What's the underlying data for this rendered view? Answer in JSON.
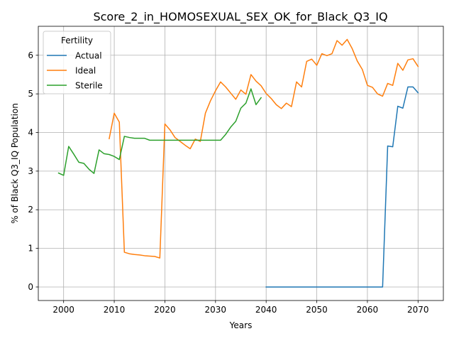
{
  "chart_data": {
    "type": "line",
    "title": "Score_2_in_HOMOSEXUAL_SEX_OK_for_Black_Q3_IQ",
    "xlabel": "Years",
    "ylabel": "% of Black Q3_IQ Population",
    "xlim": [
      1995,
      2075
    ],
    "ylim": [
      -0.35,
      6.75
    ],
    "x_ticks": [
      2000,
      2010,
      2020,
      2030,
      2040,
      2050,
      2060,
      2070
    ],
    "y_ticks": [
      0,
      1,
      2,
      3,
      4,
      5,
      6
    ],
    "grid": true,
    "legend": {
      "title": "Fertility",
      "placement": "top-left"
    },
    "series": [
      {
        "name": "Actual",
        "color": "#1f77b4",
        "points": [
          [
            2040,
            0
          ],
          [
            2041,
            0
          ],
          [
            2042,
            0
          ],
          [
            2043,
            0
          ],
          [
            2044,
            0
          ],
          [
            2045,
            0
          ],
          [
            2046,
            0
          ],
          [
            2047,
            0
          ],
          [
            2048,
            0
          ],
          [
            2049,
            0
          ],
          [
            2050,
            0
          ],
          [
            2051,
            0
          ],
          [
            2052,
            0
          ],
          [
            2053,
            0
          ],
          [
            2054,
            0
          ],
          [
            2055,
            0
          ],
          [
            2056,
            0
          ],
          [
            2057,
            0
          ],
          [
            2058,
            0
          ],
          [
            2059,
            0
          ],
          [
            2060,
            0
          ],
          [
            2061,
            0
          ],
          [
            2062,
            0
          ],
          [
            2063,
            0
          ],
          [
            2064,
            3.65
          ],
          [
            2065,
            3.63
          ],
          [
            2066,
            4.68
          ],
          [
            2067,
            4.63
          ],
          [
            2068,
            5.18
          ],
          [
            2069,
            5.18
          ],
          [
            2070,
            5.03
          ]
        ]
      },
      {
        "name": "Ideal",
        "color": "#ff7f0e",
        "points": [
          [
            2009,
            3.84
          ],
          [
            2010,
            4.5
          ],
          [
            2011,
            4.27
          ],
          [
            2012,
            0.9
          ],
          [
            2013,
            0.86
          ],
          [
            2014,
            0.84
          ],
          [
            2015,
            0.83
          ],
          [
            2016,
            0.81
          ],
          [
            2017,
            0.8
          ],
          [
            2018,
            0.79
          ],
          [
            2019,
            0.75
          ],
          [
            2020,
            4.22
          ],
          [
            2021,
            4.07
          ],
          [
            2022,
            3.87
          ],
          [
            2023,
            3.77
          ],
          [
            2024,
            3.67
          ],
          [
            2025,
            3.58
          ],
          [
            2026,
            3.83
          ],
          [
            2027,
            3.77
          ],
          [
            2028,
            4.5
          ],
          [
            2029,
            4.82
          ],
          [
            2030,
            5.08
          ],
          [
            2031,
            5.31
          ],
          [
            2032,
            5.18
          ],
          [
            2033,
            5.02
          ],
          [
            2034,
            4.86
          ],
          [
            2035,
            5.1
          ],
          [
            2036,
            4.99
          ],
          [
            2037,
            5.5
          ],
          [
            2038,
            5.33
          ],
          [
            2039,
            5.21
          ],
          [
            2040,
            5.01
          ],
          [
            2041,
            4.88
          ],
          [
            2042,
            4.72
          ],
          [
            2043,
            4.62
          ],
          [
            2044,
            4.76
          ],
          [
            2045,
            4.67
          ],
          [
            2046,
            5.31
          ],
          [
            2047,
            5.18
          ],
          [
            2048,
            5.84
          ],
          [
            2049,
            5.9
          ],
          [
            2050,
            5.74
          ],
          [
            2051,
            6.04
          ],
          [
            2052,
            5.99
          ],
          [
            2053,
            6.04
          ],
          [
            2054,
            6.38
          ],
          [
            2055,
            6.26
          ],
          [
            2056,
            6.41
          ],
          [
            2057,
            6.17
          ],
          [
            2058,
            5.85
          ],
          [
            2059,
            5.63
          ],
          [
            2060,
            5.22
          ],
          [
            2061,
            5.17
          ],
          [
            2062,
            5.0
          ],
          [
            2063,
            4.94
          ],
          [
            2064,
            5.27
          ],
          [
            2065,
            5.22
          ],
          [
            2066,
            5.79
          ],
          [
            2067,
            5.61
          ],
          [
            2068,
            5.88
          ],
          [
            2069,
            5.91
          ],
          [
            2070,
            5.71
          ]
        ]
      },
      {
        "name": "Sterile",
        "color": "#2ca02c",
        "points": [
          [
            1999,
            2.95
          ],
          [
            2000,
            2.89
          ],
          [
            2001,
            3.64
          ],
          [
            2002,
            3.44
          ],
          [
            2003,
            3.23
          ],
          [
            2004,
            3.2
          ],
          [
            2005,
            3.05
          ],
          [
            2006,
            2.94
          ],
          [
            2007,
            3.55
          ],
          [
            2008,
            3.45
          ],
          [
            2009,
            3.43
          ],
          [
            2010,
            3.38
          ],
          [
            2011,
            3.3
          ],
          [
            2012,
            3.9
          ],
          [
            2013,
            3.87
          ],
          [
            2014,
            3.85
          ],
          [
            2015,
            3.85
          ],
          [
            2016,
            3.85
          ],
          [
            2017,
            3.8
          ],
          [
            2018,
            3.8
          ],
          [
            2019,
            3.8
          ],
          [
            2020,
            3.8
          ],
          [
            2021,
            3.8
          ],
          [
            2022,
            3.8
          ],
          [
            2023,
            3.8
          ],
          [
            2024,
            3.8
          ],
          [
            2025,
            3.8
          ],
          [
            2026,
            3.8
          ],
          [
            2027,
            3.8
          ],
          [
            2028,
            3.8
          ],
          [
            2029,
            3.8
          ],
          [
            2030,
            3.8
          ],
          [
            2031,
            3.8
          ],
          [
            2032,
            3.95
          ],
          [
            2033,
            4.14
          ],
          [
            2034,
            4.29
          ],
          [
            2035,
            4.63
          ],
          [
            2036,
            4.76
          ],
          [
            2037,
            5.13
          ],
          [
            2038,
            4.72
          ],
          [
            2039,
            4.9
          ]
        ]
      }
    ]
  }
}
